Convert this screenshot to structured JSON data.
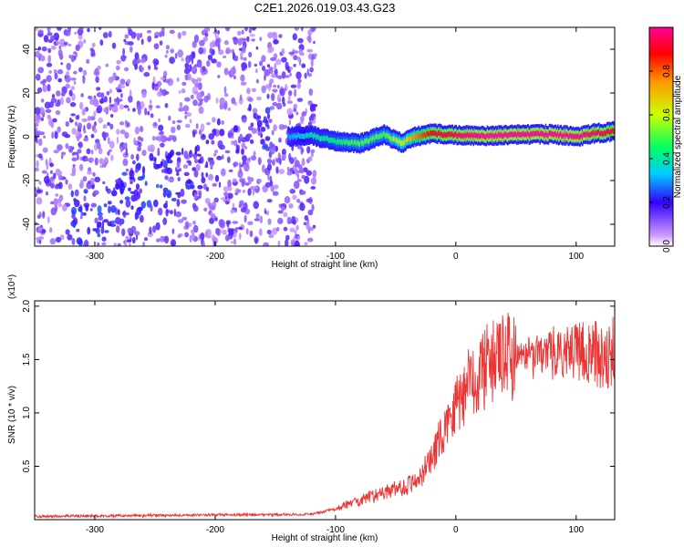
{
  "title": "C2E1.2026.019.03.43.G23",
  "chart_data": [
    {
      "type": "heatmap",
      "name": "spectrogram",
      "xlabel": "Height of straight line (km)",
      "ylabel": "Frequency (Hz)",
      "xlim": [
        -350,
        132
      ],
      "ylim": [
        -50,
        50
      ],
      "xticks": [
        -300,
        -200,
        -100,
        0,
        100
      ],
      "xtick_labels": [
        "-300",
        "-200",
        "-100",
        "0",
        "100"
      ],
      "yticks": [
        -40,
        -20,
        0,
        20,
        40
      ],
      "ytick_labels": [
        "-40",
        "-20",
        "0",
        "20",
        "40"
      ],
      "noise_region_x": [
        -350,
        -117
      ],
      "signal_track": {
        "x": [
          -140,
          -120,
          -100,
          -80,
          -60,
          -45,
          -35,
          -20,
          0,
          20,
          50,
          80,
          100,
          115,
          132
        ],
        "freq": [
          0,
          0.5,
          -2,
          -3,
          1,
          -3,
          0,
          1.5,
          0.8,
          0.3,
          1.0,
          1.2,
          0,
          1.5,
          2.5
        ],
        "amplitude": [
          0.3,
          0.4,
          0.45,
          0.5,
          0.5,
          0.6,
          0.75,
          0.9,
          0.95,
          1.0,
          1.0,
          1.0,
          1.0,
          0.95,
          0.9
        ]
      },
      "diagonal_feature": {
        "from": [
          -320,
          -40
        ],
        "to": [
          -155,
          5
        ]
      },
      "colorbar": {
        "label": "Normalized spectral amplitude",
        "range": [
          0,
          1
        ],
        "ticks": [
          0.0,
          0.2,
          0.4,
          0.6,
          0.8
        ],
        "tick_labels": [
          "0.0",
          "0.2",
          "0.4",
          "0.6",
          "0.8"
        ]
      }
    },
    {
      "type": "line",
      "name": "snr",
      "xlabel": "Height of straight line (km)",
      "ylabel": "SNR (10 * v/v)",
      "yscale_note": "(x10⁴)",
      "xlim": [
        -350,
        132
      ],
      "ylim": [
        0,
        2.05
      ],
      "xticks": [
        -300,
        -200,
        -100,
        0,
        100
      ],
      "xtick_labels": [
        "-300",
        "-200",
        "-100",
        "0",
        "100"
      ],
      "yticks": [
        0.5,
        1.0,
        1.5,
        2.0
      ],
      "ytick_labels": [
        "0.5",
        "1.0",
        "1.5",
        "2.0"
      ],
      "color": "#ee3333",
      "trend": {
        "x": [
          -350,
          -250,
          -120,
          -100,
          -80,
          -60,
          -40,
          -30,
          -20,
          -10,
          0,
          20,
          40,
          60,
          80,
          100,
          132
        ],
        "y": [
          0.03,
          0.04,
          0.05,
          0.1,
          0.18,
          0.25,
          0.32,
          0.4,
          0.55,
          0.85,
          1.1,
          1.4,
          1.52,
          1.55,
          1.56,
          1.57,
          1.55
        ]
      }
    }
  ]
}
